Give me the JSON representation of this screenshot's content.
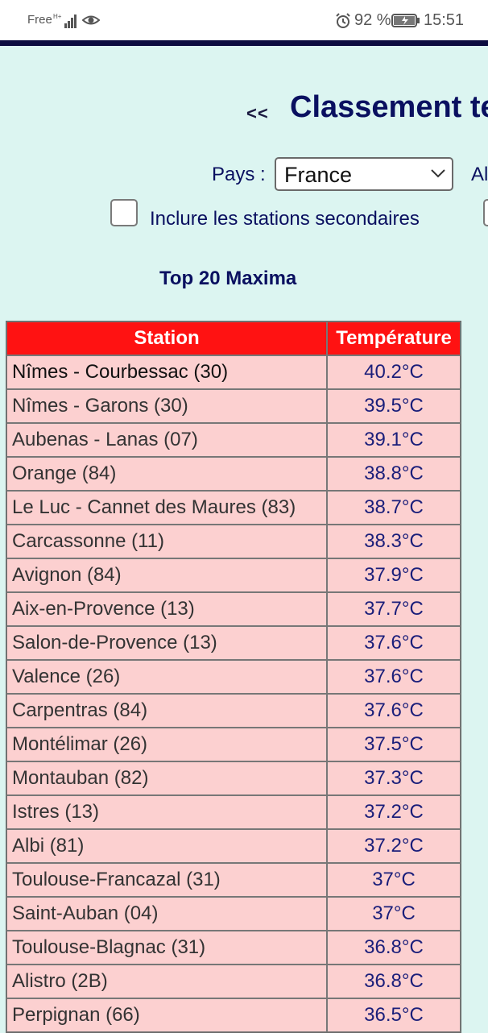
{
  "status_bar": {
    "carrier": "Free",
    "battery_percent": "92 %",
    "time": "15:51",
    "icons": [
      "network-signal-icon",
      "eye-icon",
      "alarm-icon",
      "battery-icon"
    ]
  },
  "header": {
    "back_label": "<<",
    "title": "Classement te"
  },
  "filters": {
    "pays_label": "Pays :",
    "pays_value": "France",
    "second_label": "Al",
    "secondary_checkbox_label": "Inclure les stations secondaires",
    "secondary_checked": false
  },
  "table": {
    "title": "Top 20 Maxima",
    "headers": [
      "Station",
      "Température"
    ],
    "rows": [
      {
        "station": "Nîmes - Courbessac (30)",
        "temp": "40.2°C"
      },
      {
        "station": "Nîmes - Garons (30)",
        "temp": "39.5°C"
      },
      {
        "station": "Aubenas - Lanas (07)",
        "temp": "39.1°C"
      },
      {
        "station": "Orange (84)",
        "temp": "38.8°C"
      },
      {
        "station": "Le Luc - Cannet des Maures (83)",
        "temp": "38.7°C"
      },
      {
        "station": "Carcassonne (11)",
        "temp": "38.3°C"
      },
      {
        "station": "Avignon (84)",
        "temp": "37.9°C"
      },
      {
        "station": "Aix-en-Provence (13)",
        "temp": "37.7°C"
      },
      {
        "station": "Salon-de-Provence (13)",
        "temp": "37.6°C"
      },
      {
        "station": "Valence (26)",
        "temp": "37.6°C"
      },
      {
        "station": "Carpentras (84)",
        "temp": "37.6°C"
      },
      {
        "station": "Montélimar (26)",
        "temp": "37.5°C"
      },
      {
        "station": "Montauban (82)",
        "temp": "37.3°C"
      },
      {
        "station": "Istres (13)",
        "temp": "37.2°C"
      },
      {
        "station": "Albi (81)",
        "temp": "37.2°C"
      },
      {
        "station": "Toulouse-Francazal (31)",
        "temp": "37°C"
      },
      {
        "station": "Saint-Auban (04)",
        "temp": "37°C"
      },
      {
        "station": "Toulouse-Blagnac (31)",
        "temp": "36.8°C"
      },
      {
        "station": "Alistro (2B)",
        "temp": "36.8°C"
      },
      {
        "station": "Perpignan (66)",
        "temp": "36.5°C"
      }
    ]
  },
  "colors": {
    "page_background": "#dcf5f1",
    "header_red": "#ff1212",
    "row_pink": "#fcd0d0",
    "navy_text": "#0a1060"
  }
}
